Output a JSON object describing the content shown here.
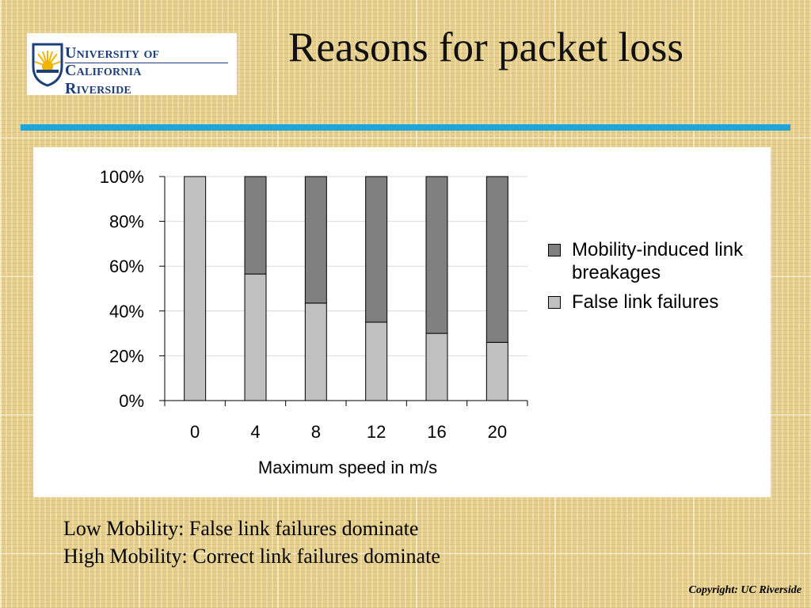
{
  "logo": {
    "line1": "University of California",
    "line2": "Riverside"
  },
  "title": "Reasons for packet loss",
  "chart_data": {
    "type": "bar",
    "stacked": true,
    "categories": [
      "0",
      "4",
      "8",
      "12",
      "16",
      "20"
    ],
    "series": [
      {
        "name": "False link failures",
        "values": [
          100,
          56.5,
          43.5,
          35,
          30,
          26
        ],
        "color": "#c0c0c0"
      },
      {
        "name": "Mobility-induced link breakages",
        "values": [
          0,
          43.5,
          56.5,
          65,
          70,
          74
        ],
        "color": "#808080"
      }
    ],
    "ylim": [
      0,
      100
    ],
    "yticks": [
      "0%",
      "20%",
      "40%",
      "60%",
      "80%",
      "100%"
    ],
    "xlabel": "Maximum speed in m/s",
    "ylabel": "",
    "legend_position": "right",
    "grid": true
  },
  "legend": {
    "item1": "Mobility-induced link breakages",
    "item2": "False link failures"
  },
  "notes": {
    "line1": "Low Mobility: False link failures dominate",
    "line2": "High Mobility: Correct link failures dominate"
  },
  "copyright": "Copyright: UC Riverside",
  "colors": {
    "accent_rule": "#1ea5dc",
    "logo_blue": "#1d3f7a",
    "logo_gold": "#f2b300"
  }
}
